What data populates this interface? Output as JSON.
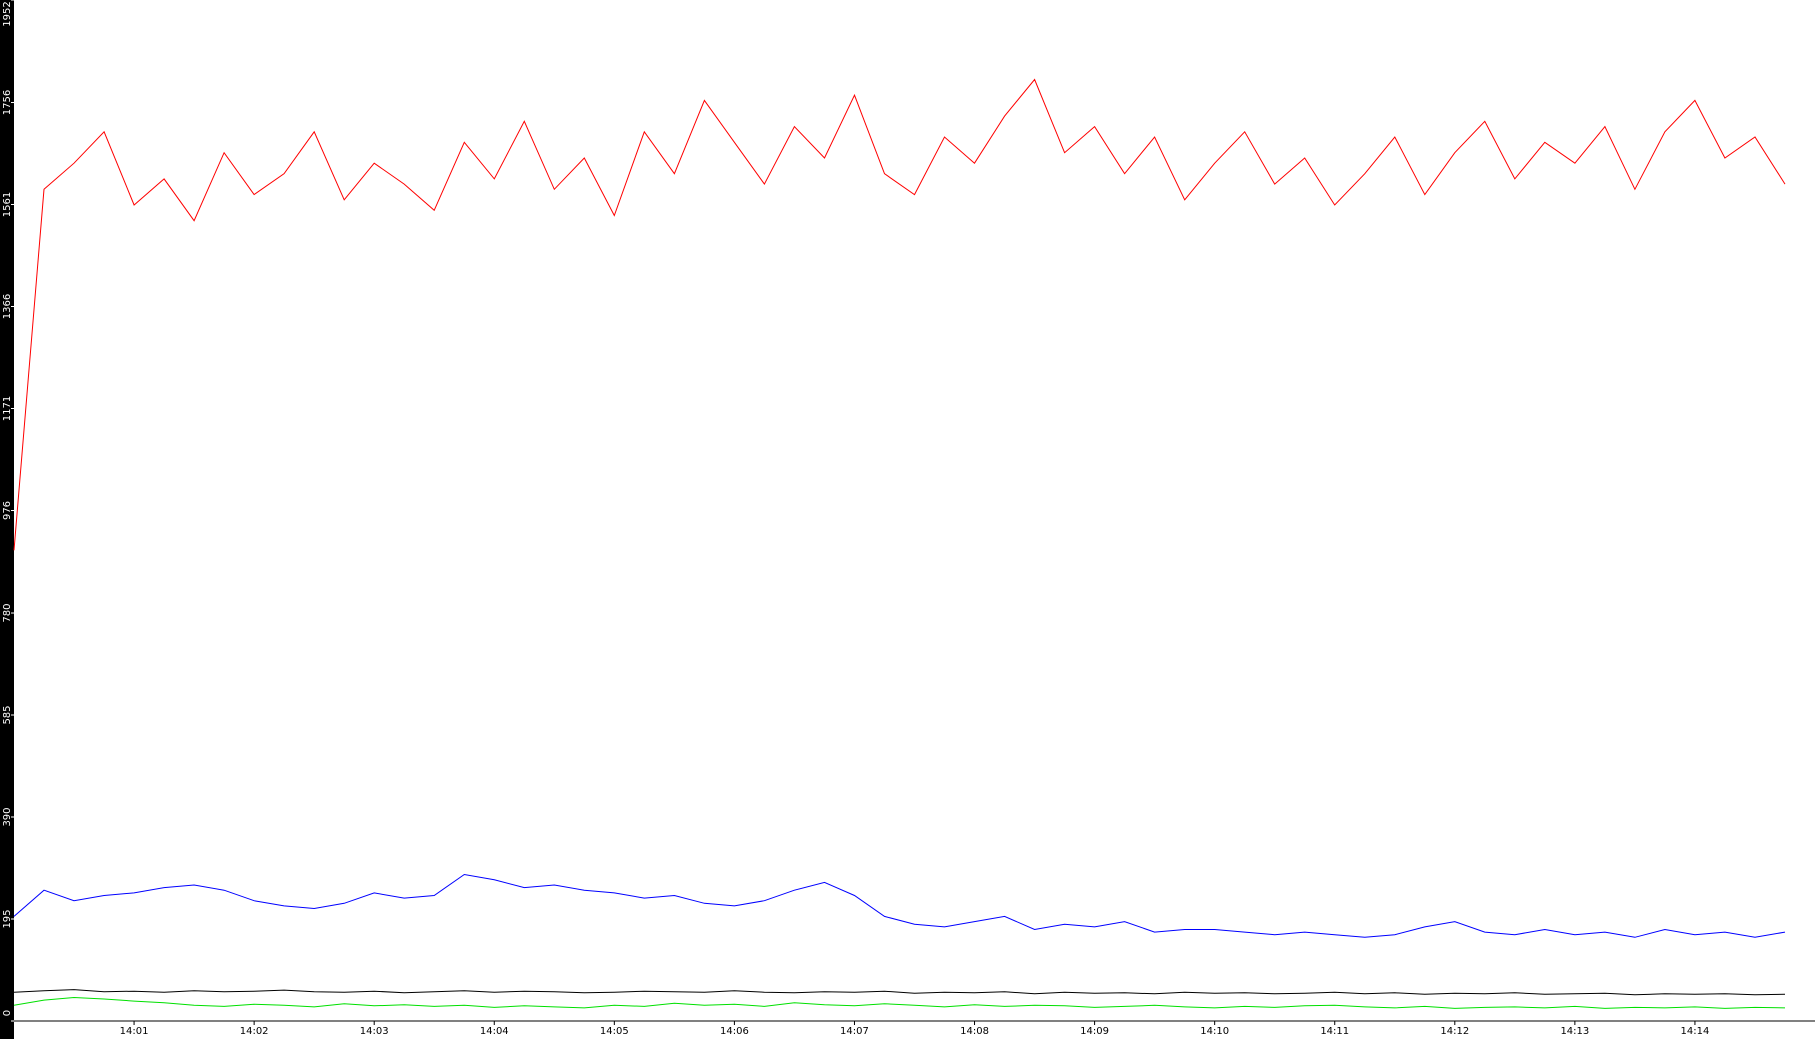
{
  "chart_data": {
    "type": "line",
    "x": [
      840,
      840.25,
      840.5,
      840.75,
      841,
      841.25,
      841.5,
      841.75,
      842,
      842.25,
      842.5,
      842.75,
      843,
      843.25,
      843.5,
      843.75,
      844,
      844.25,
      844.5,
      844.75,
      845,
      845.25,
      845.5,
      845.75,
      846,
      846.25,
      846.5,
      846.75,
      847,
      847.25,
      847.5,
      847.75,
      848,
      848.25,
      848.5,
      848.75,
      849,
      849.25,
      849.5,
      849.75,
      850,
      850.25,
      850.5,
      850.75,
      851,
      851.25,
      851.5,
      851.75,
      852,
      852.25,
      852.5,
      852.75,
      853,
      853.25,
      853.5,
      853.75,
      854,
      854.25,
      854.5,
      854.75
    ],
    "xlim": [
      840,
      855
    ],
    "xticks": [
      {
        "value": 841,
        "label": "14:01"
      },
      {
        "value": 842,
        "label": "14:02"
      },
      {
        "value": 843,
        "label": "14:03"
      },
      {
        "value": 844,
        "label": "14:04"
      },
      {
        "value": 845,
        "label": "14:05"
      },
      {
        "value": 846,
        "label": "14:06"
      },
      {
        "value": 847,
        "label": "14:07"
      },
      {
        "value": 848,
        "label": "14:08"
      },
      {
        "value": 849,
        "label": "14:09"
      },
      {
        "value": 850,
        "label": "14:10"
      },
      {
        "value": 851,
        "label": "14:11"
      },
      {
        "value": 852,
        "label": "14:12"
      },
      {
        "value": 853,
        "label": "14:13"
      },
      {
        "value": 854,
        "label": "14:14"
      }
    ],
    "ylim": [
      0,
      1952
    ],
    "yticks": [
      0,
      195,
      390,
      585,
      780,
      976,
      1171,
      1366,
      1561,
      1756,
      1952
    ],
    "grid": false,
    "series": [
      {
        "color": "#ff0000",
        "values": [
          900,
          1590,
          1640,
          1700,
          1560,
          1610,
          1530,
          1660,
          1580,
          1620,
          1700,
          1570,
          1640,
          1600,
          1550,
          1680,
          1610,
          1720,
          1590,
          1650,
          1540,
          1700,
          1620,
          1760,
          1680,
          1600,
          1710,
          1650,
          1770,
          1620,
          1580,
          1690,
          1640,
          1730,
          1800,
          1660,
          1710,
          1620,
          1690,
          1570,
          1640,
          1700,
          1600,
          1650,
          1560,
          1620,
          1690,
          1580,
          1660,
          1720,
          1610,
          1680,
          1640,
          1710,
          1590,
          1700,
          1760,
          1650,
          1690,
          1600
        ]
      },
      {
        "color": "#0000ff",
        "values": [
          200,
          250,
          230,
          240,
          245,
          255,
          260,
          250,
          230,
          220,
          215,
          225,
          245,
          235,
          240,
          280,
          270,
          255,
          260,
          250,
          245,
          235,
          240,
          225,
          220,
          230,
          250,
          265,
          240,
          200,
          185,
          180,
          190,
          200,
          175,
          185,
          180,
          190,
          170,
          175,
          175,
          170,
          165,
          170,
          165,
          160,
          165,
          180,
          190,
          170,
          165,
          175,
          165,
          170,
          160,
          175,
          165,
          170,
          160,
          170
        ]
      },
      {
        "color": "#000000",
        "values": [
          55,
          58,
          60,
          56,
          57,
          55,
          58,
          56,
          57,
          59,
          56,
          55,
          57,
          54,
          56,
          58,
          55,
          57,
          56,
          54,
          55,
          57,
          56,
          55,
          58,
          55,
          54,
          56,
          55,
          57,
          53,
          55,
          54,
          56,
          52,
          55,
          53,
          54,
          52,
          55,
          53,
          54,
          52,
          53,
          55,
          52,
          54,
          51,
          53,
          52,
          54,
          51,
          52,
          53,
          50,
          52,
          51,
          52,
          50,
          51
        ]
      },
      {
        "color": "#00e000",
        "values": [
          30,
          40,
          45,
          42,
          38,
          35,
          30,
          28,
          32,
          30,
          27,
          33,
          29,
          31,
          28,
          30,
          26,
          29,
          27,
          25,
          30,
          28,
          34,
          30,
          32,
          28,
          35,
          31,
          29,
          33,
          30,
          27,
          31,
          28,
          30,
          29,
          26,
          28,
          30,
          27,
          25,
          28,
          26,
          29,
          30,
          27,
          25,
          28,
          24,
          26,
          27,
          25,
          28,
          24,
          26,
          25,
          27,
          24,
          26,
          25
        ]
      }
    ]
  }
}
